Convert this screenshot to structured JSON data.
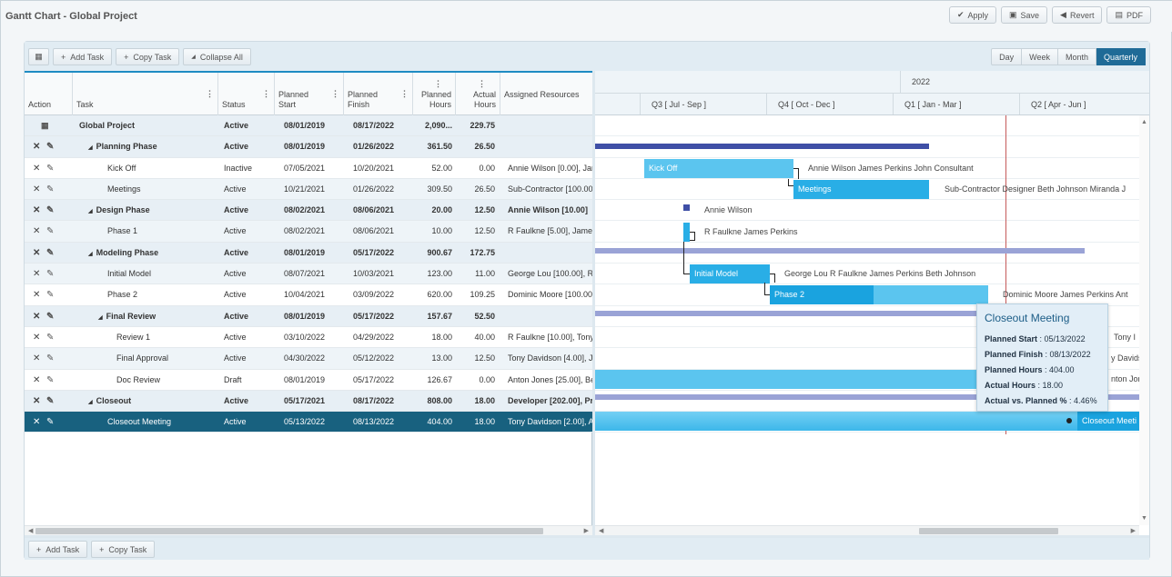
{
  "app": {
    "title": "Gantt Chart - Global Project"
  },
  "top_buttons": [
    {
      "icon": "check-icon",
      "label": "Apply"
    },
    {
      "icon": "save-icon",
      "label": "Save"
    },
    {
      "icon": "revert-icon",
      "label": "Revert"
    },
    {
      "icon": "pdf-icon",
      "label": "PDF"
    }
  ],
  "toolbar": {
    "add_task": "Add Task",
    "copy_task": "Copy Task",
    "collapse_all": "Collapse All",
    "scales": [
      "Day",
      "Week",
      "Month",
      "Quarterly"
    ],
    "active_scale": "Quarterly"
  },
  "columns": {
    "action": "Action",
    "task": "Task",
    "status": "Status",
    "planned_start": [
      "Planned",
      "Start"
    ],
    "planned_finish": [
      "Planned",
      "Finish"
    ],
    "planned_hours": [
      "Planned",
      "Hours"
    ],
    "actual_hours": [
      "Actual",
      "Hours"
    ],
    "assigned_resources": "Assigned Resources"
  },
  "tasks": [
    {
      "name": "Global Project",
      "status": "Active",
      "start": "08/01/2019",
      "finish": "08/17/2022",
      "planned_hours": "2,090...",
      "actual_hours": "229.75",
      "resources": "",
      "level": 0,
      "summary": true,
      "root": true
    },
    {
      "name": "Planning Phase",
      "status": "Active",
      "start": "08/01/2019",
      "finish": "01/26/2022",
      "planned_hours": "361.50",
      "actual_hours": "26.50",
      "resources": "",
      "level": 1,
      "summary": true
    },
    {
      "name": "Kick Off",
      "status": "Inactive",
      "start": "07/05/2021",
      "finish": "10/20/2021",
      "planned_hours": "52.00",
      "actual_hours": "0.00",
      "resources": "Annie Wilson [0.00], Jar",
      "level": 2
    },
    {
      "name": "Meetings",
      "status": "Active",
      "start": "10/21/2021",
      "finish": "01/26/2022",
      "planned_hours": "309.50",
      "actual_hours": "26.50",
      "resources": "Sub-Contractor [100.00",
      "level": 2
    },
    {
      "name": "Design Phase",
      "status": "Active",
      "start": "08/02/2021",
      "finish": "08/06/2021",
      "planned_hours": "20.00",
      "actual_hours": "12.50",
      "resources": "Annie Wilson [10.00]",
      "level": 1,
      "summary": true
    },
    {
      "name": "Phase 1",
      "status": "Active",
      "start": "08/02/2021",
      "finish": "08/06/2021",
      "planned_hours": "10.00",
      "actual_hours": "12.50",
      "resources": "R Faulkne [5.00], James",
      "level": 2
    },
    {
      "name": "Modeling Phase",
      "status": "Active",
      "start": "08/01/2019",
      "finish": "05/17/2022",
      "planned_hours": "900.67",
      "actual_hours": "172.75",
      "resources": "",
      "level": 1,
      "summary": true
    },
    {
      "name": "Initial Model",
      "status": "Active",
      "start": "08/07/2021",
      "finish": "10/03/2021",
      "planned_hours": "123.00",
      "actual_hours": "11.00",
      "resources": "George Lou [100.00], R",
      "level": 2
    },
    {
      "name": "Phase 2",
      "status": "Active",
      "start": "10/04/2021",
      "finish": "03/09/2022",
      "planned_hours": "620.00",
      "actual_hours": "109.25",
      "resources": "Dominic Moore [100.00]",
      "level": 2
    },
    {
      "name": "Final Review",
      "status": "Active",
      "start": "08/01/2019",
      "finish": "05/17/2022",
      "planned_hours": "157.67",
      "actual_hours": "52.50",
      "resources": "",
      "level": 2,
      "summary": true
    },
    {
      "name": "Review 1",
      "status": "Active",
      "start": "03/10/2022",
      "finish": "04/29/2022",
      "planned_hours": "18.00",
      "actual_hours": "40.00",
      "resources": "R Faulkne [10.00], Tony",
      "level": 3
    },
    {
      "name": "Final Approval",
      "status": "Active",
      "start": "04/30/2022",
      "finish": "05/12/2022",
      "planned_hours": "13.00",
      "actual_hours": "12.50",
      "resources": "Tony Davidson [4.00], J",
      "level": 3
    },
    {
      "name": "Doc Review",
      "status": "Draft",
      "start": "08/01/2019",
      "finish": "05/17/2022",
      "planned_hours": "126.67",
      "actual_hours": "0.00",
      "resources": "Anton Jones [25.00], Be",
      "level": 3
    },
    {
      "name": "Closeout",
      "status": "Active",
      "start": "05/17/2021",
      "finish": "08/17/2022",
      "planned_hours": "808.00",
      "actual_hours": "18.00",
      "resources": "Developer [202.00], Pro",
      "level": 1,
      "summary": true
    },
    {
      "name": "Closeout Meeting",
      "status": "Active",
      "start": "05/13/2022",
      "finish": "08/13/2022",
      "planned_hours": "404.00",
      "actual_hours": "18.00",
      "resources": "Tony Davidson [2.00], A",
      "level": 2,
      "selected": true
    }
  ],
  "timeline": {
    "year": "2022",
    "quarters": [
      "Q3 [ Jul - Sep ]",
      "Q4 [ Oct - Dec ]",
      "Q1 [ Jan - Mar ]",
      "Q2 [ Apr - Jun ]"
    ]
  },
  "chart_labels": {
    "kick_off": "Kick Off",
    "kick_off_res": "Annie Wilson   James Perkins   John Consultant",
    "meetings": "Meetings",
    "meetings_res": "Sub-Contractor   Designer   Beth Johnson   Miranda J",
    "design_res": "Annie Wilson",
    "phase1_res": "R Faulkne   James Perkins",
    "initial_model": "Initial Model",
    "initial_model_res": "George Lou   R Faulkne   James Perkins   Beth Johnson",
    "phase2": "Phase 2",
    "phase2_res": "Dominic Moore   James Perkins   Ant",
    "review1_res": "Tony I",
    "final_approval_res": "y Davids",
    "doc_review_res": "nton Jon",
    "closeout_meeting": "Closeout Meeti"
  },
  "tooltip": {
    "title": "Closeout Meeting",
    "lines": [
      {
        "label": "Planned Start",
        "value": "05/13/2022"
      },
      {
        "label": "Planned Finish",
        "value": "08/13/2022"
      },
      {
        "label": "Planned Hours",
        "value": "404.00"
      },
      {
        "label": "Actual Hours",
        "value": "18.00"
      },
      {
        "label": "Actual vs. Planned %",
        "value": "4.46%"
      }
    ]
  },
  "footer": {
    "add_task": "Add Task",
    "copy_task": "Copy Task"
  }
}
